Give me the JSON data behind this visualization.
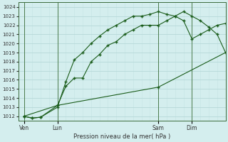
{
  "xlabel": "Pression niveau de la mer( hPa )",
  "ylim": [
    1011.5,
    1024.5
  ],
  "yticks": [
    1012,
    1013,
    1014,
    1015,
    1016,
    1017,
    1018,
    1019,
    1020,
    1021,
    1022,
    1023,
    1024
  ],
  "bg_color": "#d4eeee",
  "grid_color_major": "#b0d4d4",
  "grid_color_minor": "#c4e4e4",
  "line_color": "#1a5c1a",
  "day_labels": [
    "Ven",
    "Lun",
    "Sam",
    "Dim"
  ],
  "day_positions": [
    0,
    24,
    96,
    120
  ],
  "vline_positions": [
    0,
    24,
    96,
    120
  ],
  "xlim": [
    -4,
    144
  ],
  "line1_x": [
    0,
    6,
    12,
    24,
    30,
    36,
    42,
    48,
    54,
    60,
    66,
    72,
    78,
    84,
    90,
    96,
    102,
    108,
    114,
    120,
    126,
    132,
    138,
    144
  ],
  "line1_y": [
    1012.0,
    1011.8,
    1011.9,
    1013.2,
    1015.3,
    1016.2,
    1016.2,
    1018.0,
    1018.8,
    1019.8,
    1020.2,
    1021.0,
    1021.5,
    1022.0,
    1022.0,
    1022.0,
    1022.5,
    1023.0,
    1023.5,
    1023.0,
    1022.5,
    1021.8,
    1021.0,
    1019.0
  ],
  "line2_x": [
    0,
    6,
    12,
    24,
    30,
    36,
    42,
    48,
    54,
    60,
    66,
    72,
    78,
    84,
    90,
    96,
    102,
    108,
    114,
    120,
    126,
    132,
    138,
    144
  ],
  "line2_y": [
    1012.0,
    1011.8,
    1011.9,
    1013.0,
    1015.8,
    1018.2,
    1019.0,
    1020.0,
    1020.8,
    1021.5,
    1022.0,
    1022.5,
    1023.0,
    1023.0,
    1023.2,
    1023.5,
    1023.2,
    1023.0,
    1022.5,
    1020.5,
    1021.0,
    1021.5,
    1022.0,
    1022.2
  ],
  "line3_x": [
    0,
    24,
    96,
    144
  ],
  "line3_y": [
    1012.0,
    1013.2,
    1015.2,
    1019.0
  ],
  "figsize": [
    3.2,
    2.0
  ],
  "dpi": 100
}
